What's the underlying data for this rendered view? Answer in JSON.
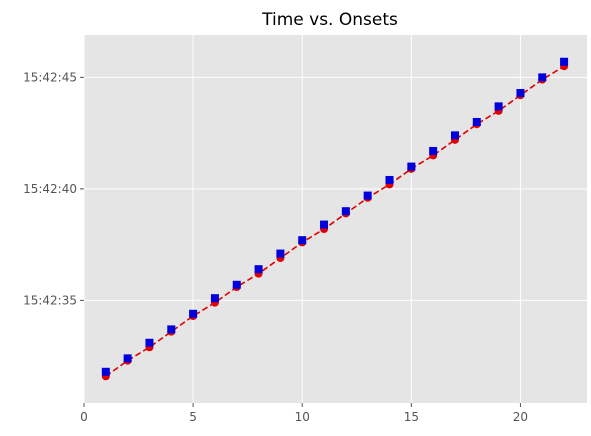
{
  "chart_data": {
    "type": "line",
    "title": "Time vs. Onsets",
    "xlabel": "",
    "ylabel": "",
    "xlim": [
      0,
      23.05
    ],
    "ylim": [
      "15:42:30.4",
      "15:42:46.9"
    ],
    "x_ticks": [
      0,
      5,
      10,
      15,
      20
    ],
    "x_tick_labels": [
      "0",
      "5",
      "10",
      "15",
      "20"
    ],
    "y_ticks": [
      "15:42:35",
      "15:42:40",
      "15:42:45"
    ],
    "y_tick_labels": [
      "15:42:35",
      "15:42:40",
      "15:42:45"
    ],
    "grid": true,
    "x": [
      1,
      2,
      3,
      4,
      5,
      6,
      7,
      8,
      9,
      10,
      11,
      12,
      13,
      14,
      15,
      16,
      17,
      18,
      19,
      20,
      21,
      22
    ],
    "series": [
      {
        "marker": "circle",
        "line": "dashed",
        "color": "#e00000",
        "values": [
          "15:42:31.6",
          "15:42:32.3",
          "15:42:32.9",
          "15:42:33.6",
          "15:42:34.3",
          "15:42:34.9",
          "15:42:35.6",
          "15:42:36.2",
          "15:42:36.9",
          "15:42:37.6",
          "15:42:38.2",
          "15:42:38.9",
          "15:42:39.6",
          "15:42:40.2",
          "15:42:40.9",
          "15:42:41.5",
          "15:42:42.2",
          "15:42:42.9",
          "15:42:43.5",
          "15:42:44.2",
          "15:42:44.9",
          "15:42:45.5"
        ]
      },
      {
        "marker": "square",
        "line": "none",
        "color": "#0000dd",
        "values": [
          "15:42:31.8",
          "15:42:32.4",
          "15:42:33.1",
          "15:42:33.7",
          "15:42:34.4",
          "15:42:35.1",
          "15:42:35.7",
          "15:42:36.4",
          "15:42:37.1",
          "15:42:37.7",
          "15:42:38.4",
          "15:42:39.0",
          "15:42:39.7",
          "15:42:40.4",
          "15:42:41.0",
          "15:42:41.7",
          "15:42:42.4",
          "15:42:43.0",
          "15:42:43.7",
          "15:42:44.3",
          "15:42:45.0",
          "15:42:45.7"
        ]
      }
    ]
  },
  "colors": {
    "plot_background": "#e5e5e5",
    "grid": "#ffffff",
    "line": "#e00000",
    "circle_marker": "#e00000",
    "square_marker": "#0000dd"
  }
}
